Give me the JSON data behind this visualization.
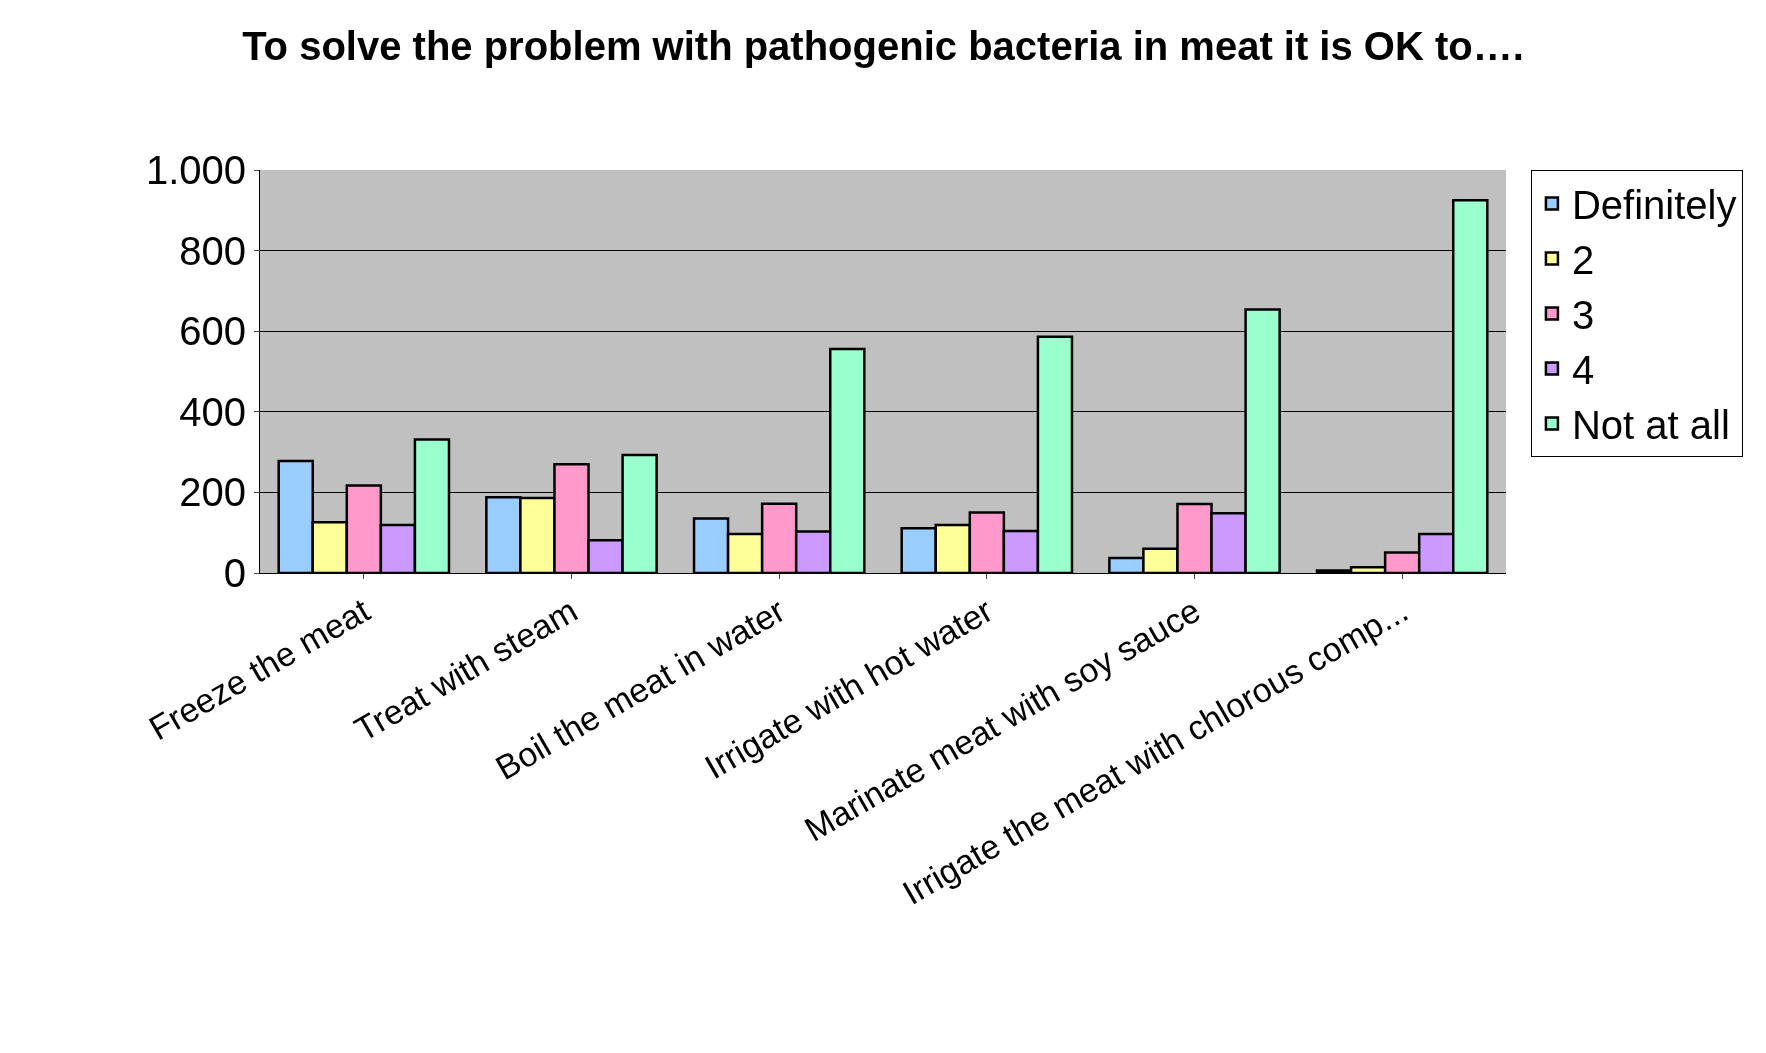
{
  "chart_data": {
    "type": "bar",
    "title": "To solve the problem with pathogenic bacteria in meat it is OK to….",
    "categories": [
      "Freeze the meat",
      "Treat with steam",
      "Boil the meat in water",
      "Irrigate with hot water",
      "Marinate meat with soy sauce",
      "Irrigate the meat with chlorous comp..."
    ],
    "series": [
      {
        "name": "Definitely",
        "color": "#99ccff",
        "values": [
          278,
          188,
          135,
          111,
          37,
          6
        ]
      },
      {
        "name": "2",
        "color": "#ffff99",
        "values": [
          126,
          186,
          97,
          119,
          60,
          14
        ]
      },
      {
        "name": "3",
        "color": "#ff99cc",
        "values": [
          217,
          270,
          172,
          150,
          171,
          51
        ]
      },
      {
        "name": "4",
        "color": "#cc99ff",
        "values": [
          119,
          81,
          103,
          104,
          148,
          97
        ]
      },
      {
        "name": "Not at all",
        "color": "#99ffcc",
        "values": [
          331,
          293,
          556,
          586,
          654,
          925
        ]
      }
    ],
    "ylim": [
      0,
      1000
    ],
    "yticks": [
      0,
      200,
      400,
      600,
      800,
      {
        "value": 1000,
        "label": "1.000"
      }
    ],
    "grid": "y",
    "legend": "top right"
  }
}
